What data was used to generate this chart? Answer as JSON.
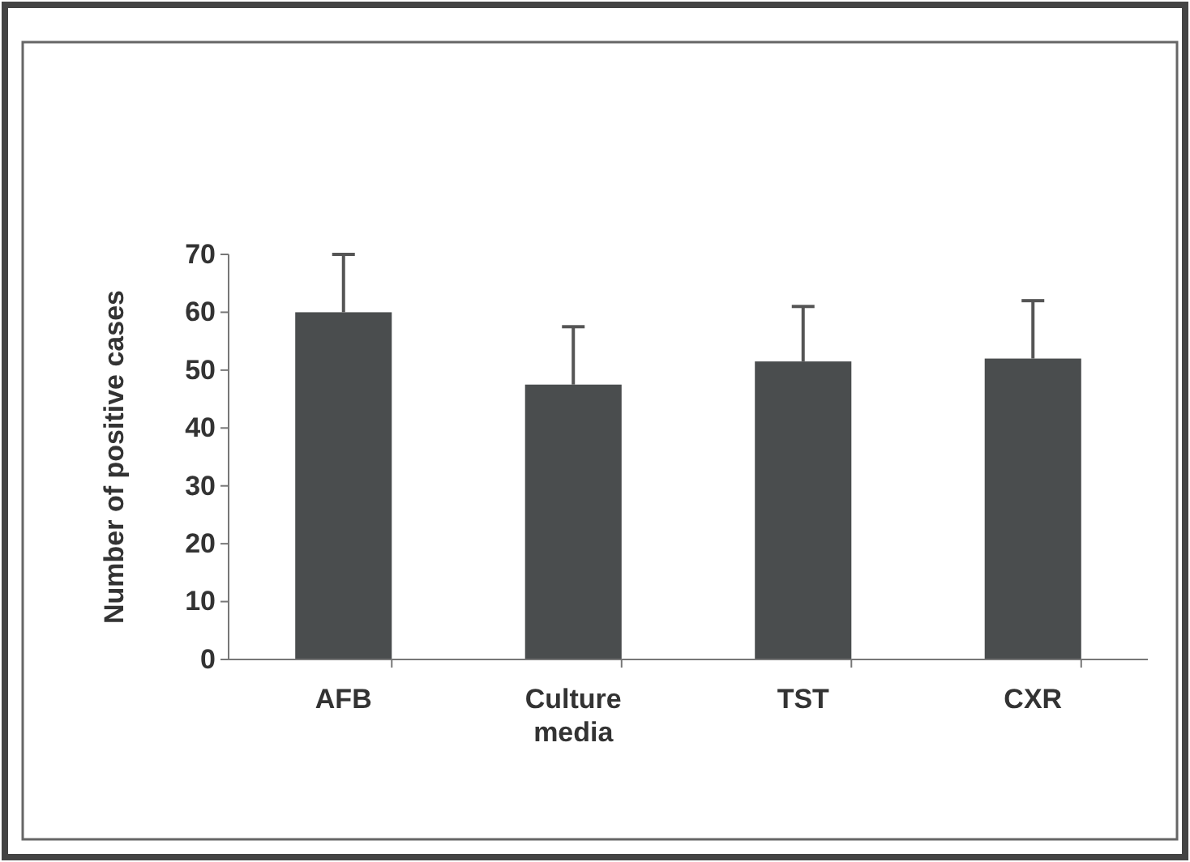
{
  "chart_data": {
    "type": "bar",
    "ylabel": "Number of positive cases",
    "categories": [
      "AFB",
      "Culture media",
      "TST",
      "CXR"
    ],
    "values": [
      60,
      47.5,
      51.5,
      52
    ],
    "errors": [
      [
        60,
        70
      ],
      [
        47.5,
        57.5
      ],
      [
        51.5,
        61
      ],
      [
        52,
        62
      ]
    ],
    "color": "#4a4d4e",
    "ylim": [
      0,
      70
    ],
    "yticks": [
      0,
      10,
      20,
      30,
      40,
      50,
      60,
      70
    ],
    "grid": false
  }
}
